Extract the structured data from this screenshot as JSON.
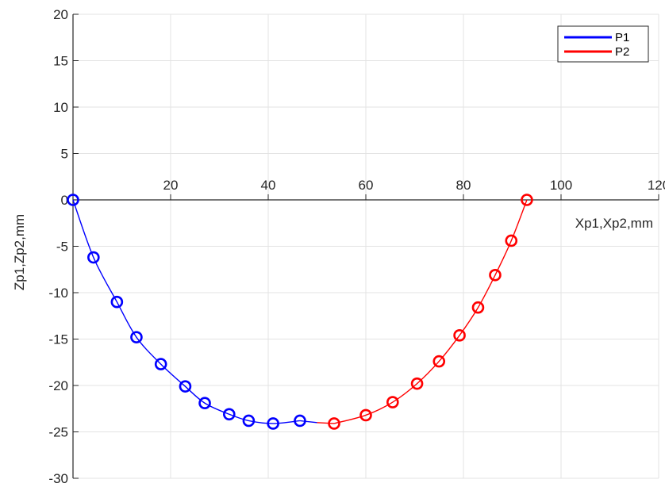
{
  "chart_data": {
    "type": "line",
    "title": "",
    "xlabel": "Xp1,Xp2,mm",
    "ylabel": "Zp1,Zp2,mm",
    "xlim": [
      0,
      120
    ],
    "ylim": [
      -30,
      20
    ],
    "x_ticks": [
      20,
      40,
      60,
      80,
      100,
      120
    ],
    "y_ticks": [
      20,
      15,
      10,
      5,
      0,
      -5,
      -10,
      -15,
      -20,
      -25,
      -30
    ],
    "grid": true,
    "legend_position": "top-right",
    "series": [
      {
        "name": "P1",
        "color": "#0000ff",
        "marker": "circle",
        "x": [
          0,
          4.2,
          9,
          13,
          18,
          23,
          27,
          32,
          36,
          41,
          46.5
        ],
        "y": [
          0,
          -6.2,
          -11,
          -14.8,
          -17.7,
          -20.1,
          -21.9,
          -23.1,
          -23.8,
          -24.1,
          -23.8
        ]
      },
      {
        "name": "P2",
        "color": "#ff0000",
        "marker": "circle",
        "x": [
          53.5,
          60,
          65.5,
          70.5,
          75,
          79.2,
          83,
          86.5,
          89.8,
          93
        ],
        "y": [
          -24.1,
          -23.2,
          -21.8,
          -19.8,
          -17.4,
          -14.6,
          -11.6,
          -8.1,
          -4.4,
          0
        ]
      }
    ]
  }
}
